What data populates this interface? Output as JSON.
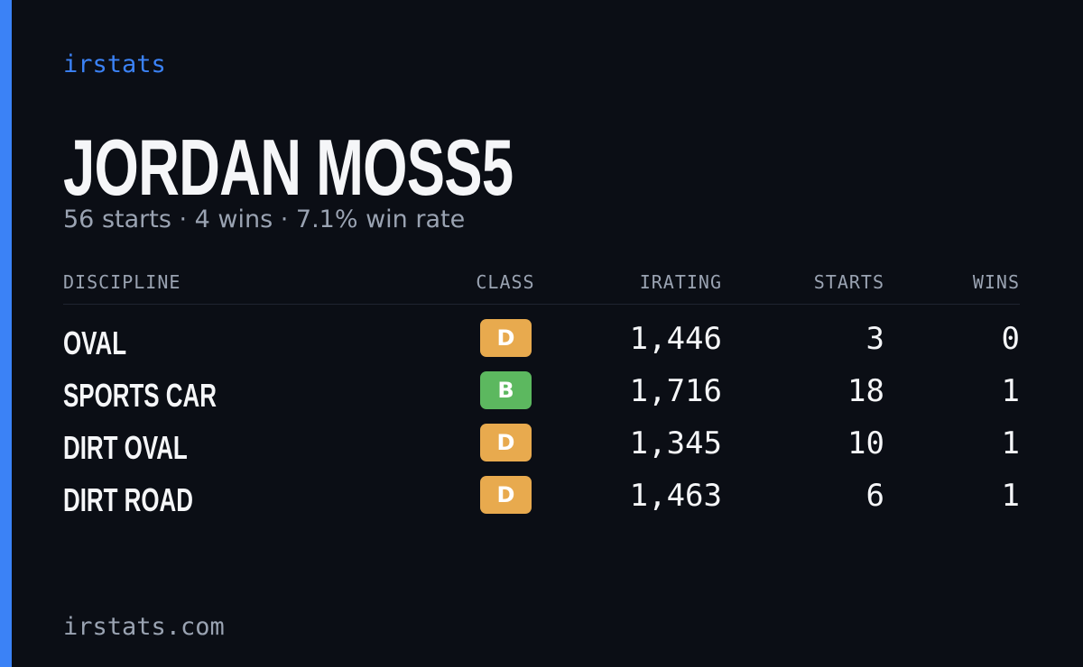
{
  "brand": "irstats",
  "driver": {
    "name": "JORDAN MOSS5",
    "summary": "56 starts · 4 wins · 7.1% win rate"
  },
  "table": {
    "headers": [
      "DISCIPLINE",
      "CLASS",
      "IRATING",
      "STARTS",
      "WINS"
    ],
    "rows": [
      {
        "discipline": "OVAL",
        "class": "D",
        "class_color": "#e8aa4e",
        "irating": "1,446",
        "starts": "3",
        "wins": "0"
      },
      {
        "discipline": "SPORTS CAR",
        "class": "B",
        "class_color": "#5cb85f",
        "irating": "1,716",
        "starts": "18",
        "wins": "1"
      },
      {
        "discipline": "DIRT OVAL",
        "class": "D",
        "class_color": "#e8aa4e",
        "irating": "1,345",
        "starts": "10",
        "wins": "1"
      },
      {
        "discipline": "DIRT ROAD",
        "class": "D",
        "class_color": "#e8aa4e",
        "irating": "1,463",
        "starts": "6",
        "wins": "1"
      }
    ]
  },
  "footer": {
    "url": "irstats.com"
  }
}
